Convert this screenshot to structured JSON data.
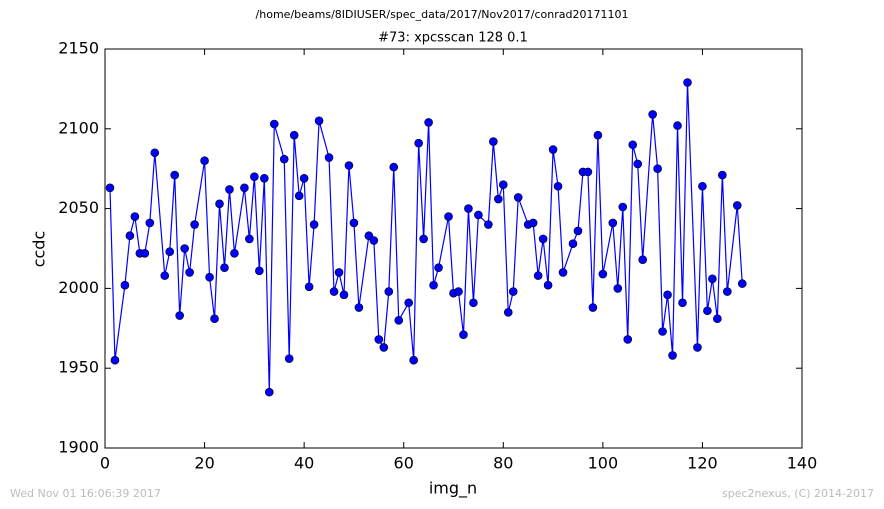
{
  "chart_data": {
    "type": "line",
    "suptitle": "/home/beams/8IDIUSER/spec_data/2017/Nov2017/conrad20171101",
    "title": "#73: xpcsscan 128 0.1",
    "x_label": "img_n",
    "y_label": "ccdc",
    "footer_left": "Wed Nov 01 16:06:39 2017",
    "footer_right": "spec2nexus, (C) 2014-2017",
    "xlim": [
      0,
      140
    ],
    "xticks": [
      0,
      20,
      40,
      60,
      80,
      100,
      120,
      140
    ],
    "ylim": [
      1900,
      2150
    ],
    "yticks": [
      1900,
      1950,
      2000,
      2050,
      2100,
      2150
    ],
    "x": [
      1,
      2,
      4,
      5,
      6,
      7,
      8,
      9,
      10,
      12,
      13,
      14,
      15,
      16,
      17,
      18,
      20,
      21,
      22,
      23,
      24,
      25,
      26,
      28,
      29,
      30,
      31,
      32,
      33,
      34,
      36,
      37,
      38,
      39,
      40,
      41,
      42,
      43,
      45,
      46,
      47,
      48,
      49,
      50,
      51,
      53,
      54,
      55,
      56,
      57,
      58,
      59,
      61,
      62,
      63,
      64,
      65,
      66,
      67,
      69,
      70,
      71,
      72,
      73,
      74,
      75,
      77,
      78,
      79,
      80,
      81,
      82,
      83,
      85,
      86,
      87,
      88,
      89,
      90,
      91,
      92,
      94,
      95,
      96,
      97,
      98,
      99,
      100,
      102,
      103,
      104,
      105,
      106,
      107,
      108,
      110,
      111,
      112,
      113,
      114,
      115,
      116,
      117,
      119,
      120,
      121,
      122,
      123,
      124,
      125,
      127,
      128
    ],
    "series": [
      {
        "name": "ccdc",
        "color": "#0000ff",
        "values": [
          2063,
          1955,
          2002,
          2033,
          2045,
          2022,
          2022,
          2041,
          2085,
          2008,
          2023,
          2071,
          1983,
          2025,
          2010,
          2040,
          2080,
          2007,
          1981,
          2053,
          2013,
          2062,
          2022,
          2063,
          2031,
          2070,
          2011,
          2069,
          1935,
          2103,
          2081,
          1956,
          2096,
          2058,
          2069,
          2001,
          2040,
          2105,
          2082,
          1998,
          2010,
          1996,
          2077,
          2041,
          1988,
          2033,
          2030,
          1968,
          1963,
          1998,
          2076,
          1980,
          1991,
          1955,
          2091,
          2031,
          2104,
          2002,
          2013,
          2045,
          1997,
          1998,
          1971,
          2050,
          1991,
          2046,
          2040,
          2092,
          2056,
          2065,
          1985,
          1998,
          2057,
          2040,
          2041,
          2008,
          2031,
          2002,
          2087,
          2064,
          2010,
          2028,
          2036,
          2073,
          2073,
          1988,
          2096,
          2009,
          2041,
          2000,
          2051,
          1968,
          2090,
          2078,
          2018,
          2109,
          2075,
          1973,
          1996,
          1958,
          2102,
          1991,
          2129,
          1963,
          2064,
          1986,
          2006,
          1981,
          2071,
          1998,
          2052,
          2003
        ]
      }
    ]
  }
}
